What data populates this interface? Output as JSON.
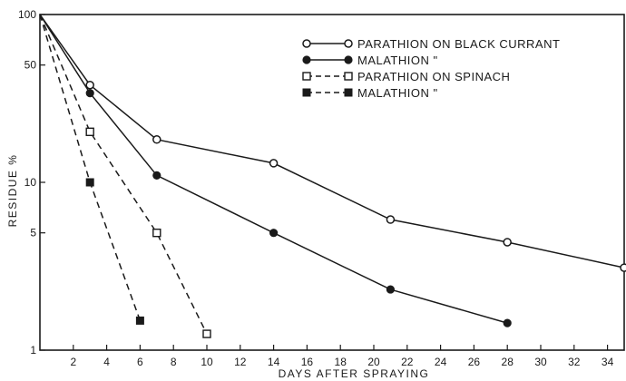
{
  "chart_data": {
    "type": "line",
    "xlabel": "DAYS AFTER SPRAYING",
    "ylabel": "RESIDUE %",
    "xlim": [
      0,
      35
    ],
    "ylim": [
      1,
      100
    ],
    "y_scale": "log",
    "grid": false,
    "legend_position": "top-right",
    "x_ticks": [
      2,
      4,
      6,
      8,
      10,
      12,
      14,
      16,
      18,
      20,
      22,
      24,
      26,
      28,
      30,
      32,
      34
    ],
    "y_ticks": [
      {
        "value": 1,
        "label": "1"
      },
      {
        "value": 5,
        "label": "5"
      },
      {
        "value": 10,
        "label": "10"
      },
      {
        "value": 50,
        "label": "50"
      },
      {
        "value": 100,
        "label": "100"
      }
    ],
    "series": [
      {
        "name": "PARATHION ON BLACK CURRANT",
        "legend_text": "PARATHION ON BLACK CURRANT",
        "line_style": "solid",
        "marker": "open-circle",
        "x": [
          0,
          3,
          7,
          14,
          21,
          28,
          35
        ],
        "y": [
          100,
          38,
          18,
          13,
          6,
          4.4,
          3.1
        ]
      },
      {
        "name": "MALATHION",
        "legend_text": "MALATHION \"",
        "line_style": "solid",
        "marker": "filled-circle",
        "x": [
          0,
          3,
          7,
          14,
          21,
          28
        ],
        "y": [
          100,
          34,
          11,
          5,
          2.3,
          1.45
        ]
      },
      {
        "name": "PARATHION ON SPINACH",
        "legend_text": "PARATHION ON SPINACH",
        "line_style": "dashed",
        "marker": "open-square",
        "x": [
          0,
          3,
          7,
          10
        ],
        "y": [
          100,
          20,
          5,
          1.25
        ]
      },
      {
        "name": "MALATHION",
        "legend_text": "MALATHION \"",
        "line_style": "dashed",
        "marker": "filled-square",
        "x": [
          0,
          3,
          6
        ],
        "y": [
          100,
          10,
          1.5
        ]
      }
    ],
    "colors": {
      "ink": "#1a1a1a",
      "background": "#ffffff"
    }
  }
}
